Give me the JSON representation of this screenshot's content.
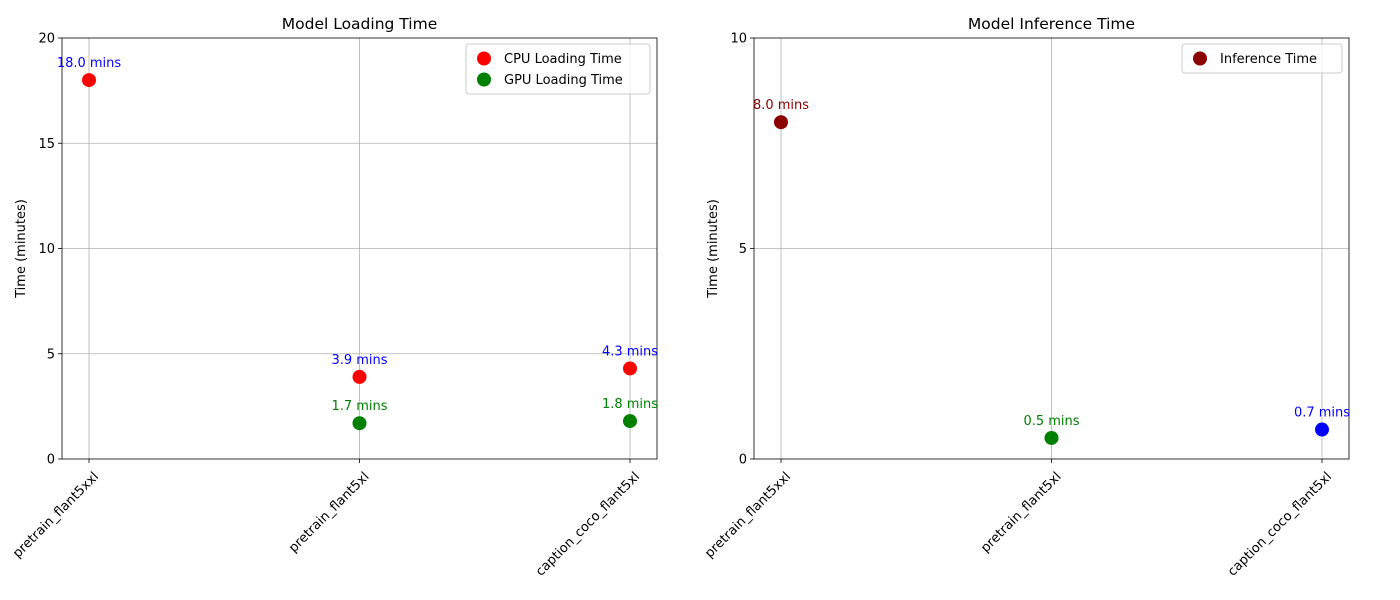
{
  "chart_data": [
    {
      "type": "scatter",
      "title": "Model Loading Time",
      "xlabel": "",
      "ylabel": "Time (minutes)",
      "categories": [
        "pretrain_flant5xxl",
        "pretrain_flant5xl",
        "caption_coco_flant5xl"
      ],
      "ylim": [
        0,
        20
      ],
      "yticks": [
        0,
        5,
        10,
        15,
        20
      ],
      "grid": true,
      "legend_position": "top-right",
      "series": [
        {
          "name": "CPU Loading Time",
          "color": "#ff0000",
          "points": [
            {
              "category": "pretrain_flant5xxl",
              "value": 18.0,
              "label": "18.0 mins",
              "label_color": "#0000ff"
            },
            {
              "category": "pretrain_flant5xl",
              "value": 3.9,
              "label": "3.9 mins",
              "label_color": "#0000ff"
            },
            {
              "category": "caption_coco_flant5xl",
              "value": 4.3,
              "label": "4.3 mins",
              "label_color": "#0000ff"
            }
          ]
        },
        {
          "name": "GPU Loading Time",
          "color": "#008000",
          "points": [
            {
              "category": "pretrain_flant5xl",
              "value": 1.7,
              "label": "1.7 mins",
              "label_color": "#008000"
            },
            {
              "category": "caption_coco_flant5xl",
              "value": 1.8,
              "label": "1.8 mins",
              "label_color": "#008000"
            }
          ]
        }
      ]
    },
    {
      "type": "scatter",
      "title": "Model Inference Time",
      "xlabel": "",
      "ylabel": "Time (minutes)",
      "categories": [
        "pretrain_flant5xxl",
        "pretrain_flant5xl",
        "caption_coco_flant5xl"
      ],
      "ylim": [
        0,
        10
      ],
      "yticks": [
        0,
        5,
        10
      ],
      "grid": true,
      "legend_position": "top-right",
      "series": [
        {
          "name": "Inference Time",
          "color": "#8b0000",
          "points": [
            {
              "category": "pretrain_flant5xxl",
              "value": 8.0,
              "label": "8.0 mins",
              "label_color": "#8b0000",
              "color": "#8b0000"
            },
            {
              "category": "pretrain_flant5xl",
              "value": 0.5,
              "label": "0.5 mins",
              "label_color": "#008000",
              "color": "#008000"
            },
            {
              "category": "caption_coco_flant5xl",
              "value": 0.7,
              "label": "0.7 mins",
              "label_color": "#0000ff",
              "color": "#0000ff"
            }
          ]
        }
      ]
    }
  ]
}
